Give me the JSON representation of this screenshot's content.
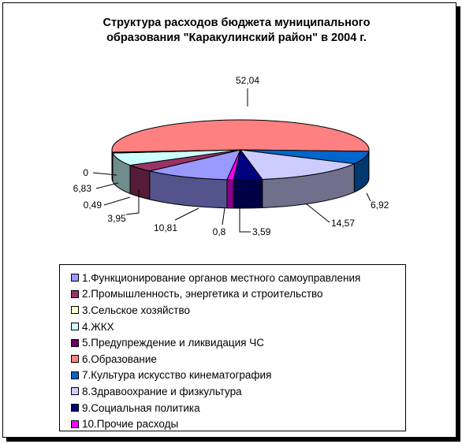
{
  "chart_data": {
    "type": "pie",
    "title": "Структура расходов бюджета муниципального образования \"Каракулинский район\" в 2004 г.",
    "title_line1": "Структура расходов бюджета муниципального",
    "title_line2": "образования \"Каракулинский район\" в 2004 г.",
    "legend_position": "bottom",
    "categories": [
      "1.Функционирование органов местного самоуправления",
      "2.Промышленность, энергетика и строительство",
      "3.Сельское хозяйство",
      "4.ЖКХ",
      "5.Предупреждение и ликвидация ЧС",
      "6.Образование",
      "7.Культура искусство  кинематография",
      "8.Здравоохрание и физкультура",
      "9.Социальная  политика",
      "10.Прочие расходы"
    ],
    "values": [
      10.81,
      3.95,
      0,
      6.83,
      0.49,
      52.04,
      6.92,
      14.57,
      3.59,
      0.8
    ],
    "labels": [
      "10,81",
      "3,95",
      "0",
      "6,83",
      "0,49",
      "52,04",
      "6,92",
      "14,57",
      "3,59",
      "0,8"
    ],
    "colors": [
      "#9999FF",
      "#993366",
      "#FFFFCC",
      "#CCFFFF",
      "#660066",
      "#FF8080",
      "#0066CC",
      "#CCCCFF",
      "#000080",
      "#FF00FF"
    ]
  }
}
